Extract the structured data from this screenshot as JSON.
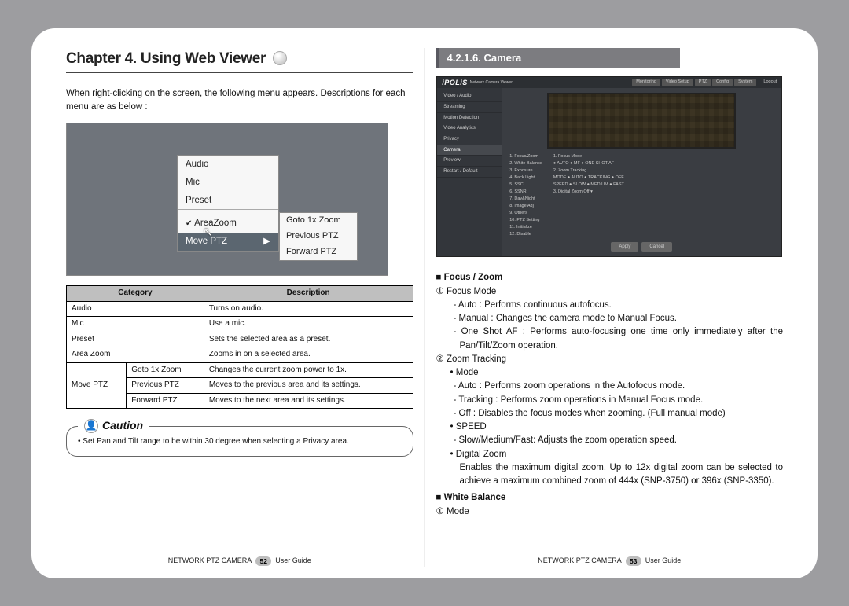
{
  "chapter_title": "Chapter 4. Using Web Viewer",
  "left": {
    "intro": "When right-clicking on the screen, the following menu appears. Descriptions for each menu are as below :",
    "menu": {
      "items": [
        "Audio",
        "Mic",
        "Preset"
      ],
      "checked": "AreaZoom",
      "selected": "Move PTZ",
      "sub": [
        "Goto 1x Zoom",
        "Previous PTZ",
        "Forward PTZ"
      ]
    },
    "table": {
      "headers": [
        "Category",
        "Description"
      ],
      "rows": [
        [
          "Audio",
          "",
          "Turns on audio."
        ],
        [
          "Mic",
          "",
          "Use a mic."
        ],
        [
          "Preset",
          "",
          "Sets the selected area as a preset."
        ],
        [
          "Area Zoom",
          "",
          "Zooms in on a selected area."
        ],
        [
          "Move PTZ",
          "Goto 1x Zoom",
          "Changes the current zoom power to 1x."
        ],
        [
          "",
          "Previous PTZ",
          "Moves to the previous area and its settings."
        ],
        [
          "",
          "Forward PTZ",
          "Moves to the next area and its settings."
        ]
      ]
    },
    "caution_label": "Caution",
    "caution_text": "• Set Pan and Tilt range to be within 30 degree when selecting a Privacy area."
  },
  "right": {
    "section": "4.2.1.6. Camera",
    "ipolis": {
      "logo": "iPOLiS",
      "subtitle": "Network Camera Viewer",
      "tabs": [
        "Monitoring",
        "Video Setup",
        "PTZ",
        "Config",
        "System"
      ],
      "logout": "Logout",
      "side": [
        "Video / Audio",
        "Streaming",
        "Motion Detection",
        "Video Analytics",
        "Privacy",
        "Camera",
        "Preview",
        "Restart / Default"
      ],
      "side_active_index": 5,
      "numlist": [
        "1. Focus/Zoom",
        "2. White Balance",
        "3. Exposure",
        "4. Back Light",
        "5. SSC",
        "6. SSNR",
        "7. Day&Night",
        "8. Image Adj",
        "9. Others",
        "10. PTZ Setting",
        "11. Initialize",
        "12. Disable"
      ],
      "rhs": [
        "1. Focus Mode",
        "   ● AUTO  ● MF  ● ONE SHOT AF",
        "2. Zoom Tracking",
        "MODE   ● AUTO  ● TRACKING  ● OFF",
        "SPEED  ● SLOW  ● MEDIUM  ● FAST",
        "3. Digital Zoom   Off  ▾"
      ],
      "btns": [
        "Apply",
        "Cancel"
      ]
    },
    "lines": [
      {
        "cls": "hsec sq",
        "txt": "Focus / Zoom"
      },
      {
        "cls": "",
        "txt": "① Focus Mode"
      },
      {
        "cls": "dash",
        "txt": "- Auto : Performs continuous autofocus."
      },
      {
        "cls": "dash",
        "txt": "- Manual : Changes the camera mode to Manual Focus."
      },
      {
        "cls": "dash just",
        "txt": "- One Shot AF : Performs auto-focusing one time only immediately after the Pan/Tilt/Zoom operation."
      },
      {
        "cls": "",
        "txt": "② Zoom Tracking"
      },
      {
        "cls": "sub dot",
        "txt": "Mode"
      },
      {
        "cls": "dash",
        "txt": "- Auto : Performs zoom operations in the Autofocus mode."
      },
      {
        "cls": "dash",
        "txt": "- Tracking : Performs zoom operations in Manual Focus mode."
      },
      {
        "cls": "dash",
        "txt": "- Off : Disables the focus modes when zooming. (Full manual mode)"
      },
      {
        "cls": "sub dot",
        "txt": "SPEED"
      },
      {
        "cls": "dash",
        "txt": "- Slow/Medium/Fast: Adjusts the zoom operation speed."
      },
      {
        "cls": "sub dot",
        "txt": "Digital Zoom"
      },
      {
        "cls": "sub2 just",
        "txt": "Enables the maximum digital zoom. Up to 12x digital zoom can be selected to achieve a maximum combined zoom of 444x (SNP-3750) or 396x (SNP-3350)."
      },
      {
        "cls": "hsec sq",
        "txt": "White Balance"
      },
      {
        "cls": "",
        "txt": "① Mode"
      }
    ]
  },
  "footer": {
    "product": "NETWORK PTZ CAMERA",
    "guide": "User Guide",
    "left_page": "52",
    "right_page": "53"
  },
  "colors": {
    "page_bg": "#ffffff",
    "outer_bg": "#9d9da0",
    "tab_bg": "#7c7c80",
    "screenshot_bg": "#6f747b",
    "ipolis_bg": "#3a3d42"
  }
}
